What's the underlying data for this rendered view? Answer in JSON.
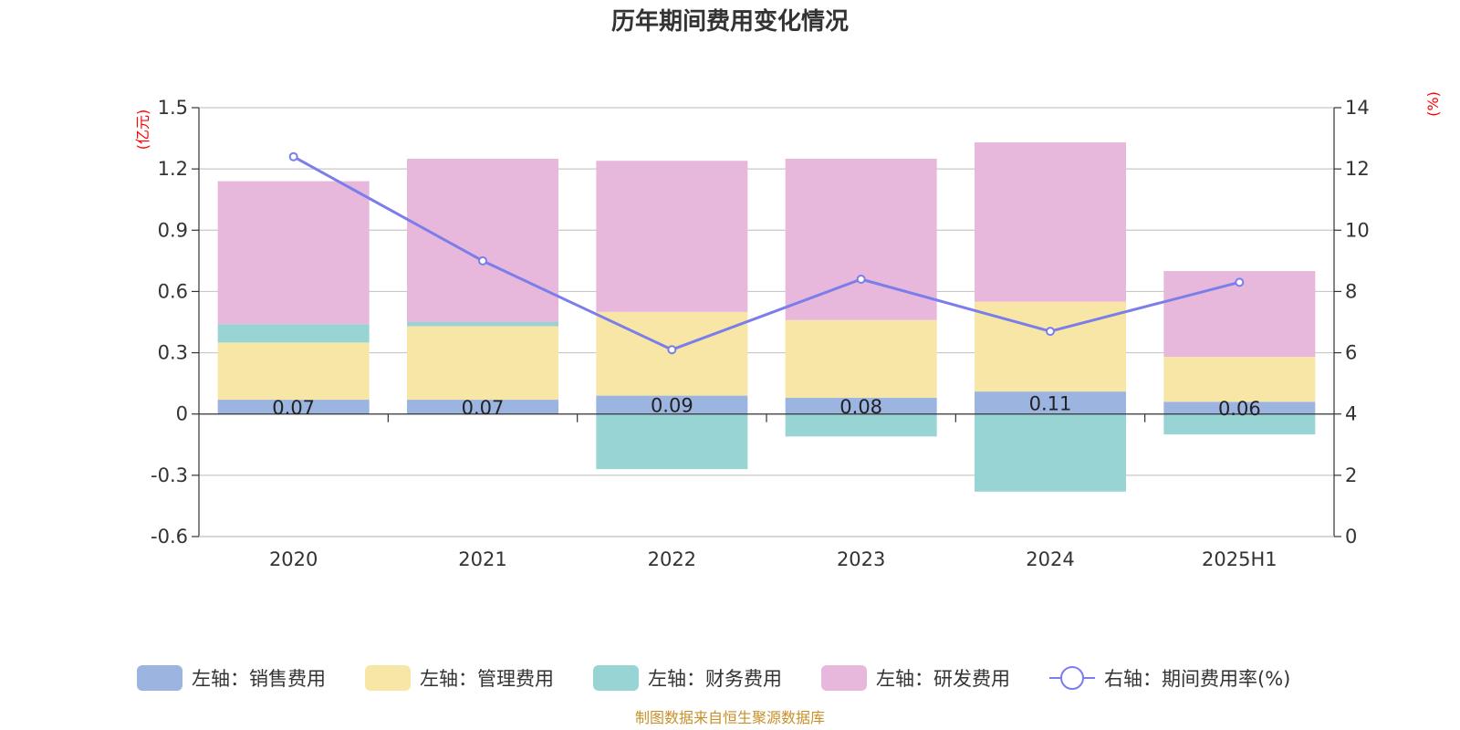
{
  "chart_data": {
    "type": "bar",
    "title": "历年期间费用变化情况",
    "categories": [
      "2020",
      "2021",
      "2022",
      "2023",
      "2024",
      "2025H1"
    ],
    "series": [
      {
        "name": "左轴：销售费用",
        "axis": "left",
        "color": "#9bb4e0",
        "values": [
          0.07,
          0.07,
          0.09,
          0.08,
          0.11,
          0.06
        ],
        "data_labels": [
          "0.07",
          "0.07",
          "0.09",
          "0.08",
          "0.11",
          "0.06"
        ]
      },
      {
        "name": "左轴：管理费用",
        "axis": "left",
        "color": "#f8e6a6",
        "values": [
          0.28,
          0.36,
          0.41,
          0.38,
          0.44,
          0.22
        ]
      },
      {
        "name": "左轴：财务费用",
        "axis": "left",
        "color": "#98d4d4",
        "values": [
          0.09,
          0.02,
          -0.27,
          -0.11,
          -0.38,
          -0.1
        ]
      },
      {
        "name": "左轴：研发费用",
        "axis": "left",
        "color": "#e7b8db",
        "values": [
          0.7,
          0.8,
          0.74,
          0.79,
          0.78,
          0.42
        ]
      },
      {
        "name": "右轴：期间费用率(%)",
        "axis": "right",
        "type": "line",
        "color": "#7b7eea",
        "values": [
          12.4,
          9.0,
          6.1,
          8.4,
          6.7,
          8.3
        ]
      }
    ],
    "left_axis": {
      "unit": "(亿元)",
      "min": -0.6,
      "max": 1.5,
      "ticks": [
        -0.6,
        -0.3,
        0,
        0.3,
        0.6,
        0.9,
        1.2,
        1.5
      ],
      "tick_labels": [
        "-0.6",
        "-0.3",
        "0",
        "0.3",
        "0.6",
        "0.9",
        "1.2",
        "1.5"
      ]
    },
    "right_axis": {
      "unit": "(%)",
      "min": 0,
      "max": 14,
      "ticks": [
        0,
        2,
        4,
        6,
        8,
        10,
        12,
        14
      ],
      "tick_labels": [
        "0",
        "2",
        "4",
        "6",
        "8",
        "10",
        "12",
        "14"
      ]
    },
    "grid": true,
    "legend_position": "bottom",
    "source": "制图数据来自恒生聚源数据库"
  }
}
